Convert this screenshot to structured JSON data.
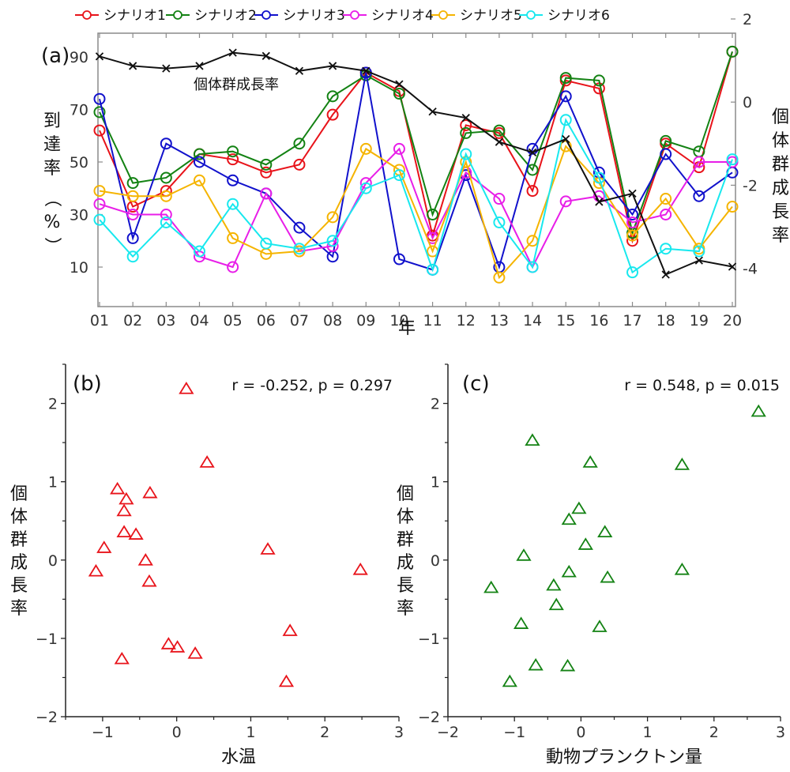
{
  "chart_data": [
    {
      "id": "a",
      "type": "line",
      "panel_label": "(a)",
      "xlabel": "年",
      "ylabel": "到達率（%）",
      "ylabel_right": "個体群成長率",
      "x": [
        "01",
        "02",
        "03",
        "04",
        "05",
        "06",
        "07",
        "08",
        "09",
        "10",
        "11",
        "12",
        "13",
        "14",
        "15",
        "16",
        "17",
        "18",
        "19",
        "20"
      ],
      "ylim": [
        0,
        98
      ],
      "yticks": [
        10,
        30,
        50,
        70,
        90
      ],
      "ylim_right": [
        -4.6,
        2.1
      ],
      "yticks_right": [
        -4,
        -2,
        0,
        2
      ],
      "legend_placement": "top",
      "series": [
        {
          "name": "シナリオ1",
          "color": "#e8131a",
          "marker": "circle",
          "axis": "left",
          "values": [
            62,
            33,
            39,
            53,
            51,
            46,
            49,
            68,
            84,
            77,
            22,
            64,
            61,
            39,
            81,
            78,
            20,
            57,
            48,
            92
          ]
        },
        {
          "name": "シナリオ2",
          "color": "#138213",
          "marker": "circle",
          "axis": "left",
          "values": [
            69,
            42,
            44,
            53,
            54,
            49,
            57,
            75,
            83,
            76,
            30,
            61,
            62,
            47,
            82,
            81,
            23,
            58,
            54,
            92
          ]
        },
        {
          "name": "シナリオ3",
          "color": "#1111cc",
          "marker": "circle",
          "axis": "left",
          "values": [
            74,
            21,
            57,
            50,
            43,
            38,
            25,
            14,
            84,
            13,
            9,
            45,
            10,
            55,
            75,
            46,
            30,
            53,
            37,
            46
          ]
        },
        {
          "name": "シナリオ4",
          "color": "#e81ee8",
          "marker": "circle",
          "axis": "left",
          "values": [
            34,
            30,
            30,
            14,
            10,
            38,
            16,
            18,
            42,
            55,
            21,
            46,
            36,
            10,
            35,
            37,
            27,
            30,
            50,
            50
          ]
        },
        {
          "name": "シナリオ5",
          "color": "#f5b400",
          "marker": "circle",
          "axis": "left",
          "values": [
            39,
            37,
            37,
            43,
            21,
            15,
            16,
            29,
            55,
            47,
            16,
            50,
            6,
            20,
            56,
            42,
            22,
            36,
            17,
            33
          ]
        },
        {
          "name": "シナリオ6",
          "color": "#18e8ee",
          "marker": "circle",
          "axis": "left",
          "values": [
            28,
            14,
            27,
            16,
            34,
            19,
            17,
            20,
            40,
            45,
            9,
            53,
            27,
            10,
            66,
            44,
            8,
            17,
            16,
            51
          ]
        }
      ],
      "series_right": [
        {
          "name": "個体群成長率",
          "color": "#111111",
          "marker": "x",
          "axis": "right",
          "values": [
            1.1,
            0.87,
            0.81,
            0.87,
            1.19,
            1.11,
            0.75,
            0.87,
            0.75,
            0.43,
            -0.23,
            -0.38,
            -0.96,
            -1.21,
            -0.89,
            -2.4,
            -2.2,
            -4.15,
            -3.81,
            -3.96
          ]
        }
      ],
      "annotation": "個体群成長率"
    },
    {
      "id": "b",
      "type": "scatter",
      "panel_label": "(b)",
      "stat": "r = -0.252, p = 0.297",
      "xlabel": "水温",
      "ylabel": "個体群成長率",
      "xlim": [
        -1.5,
        3
      ],
      "ylim": [
        -2,
        2.5
      ],
      "xticks": [
        -1,
        0,
        1,
        2,
        3
      ],
      "yticks": [
        -2,
        -1,
        0,
        1,
        2
      ],
      "xtick_labels": [
        "−1",
        "0",
        "1",
        "2",
        "3"
      ],
      "ytick_labels": [
        "−2",
        "−1",
        "0",
        "1",
        "2"
      ],
      "color": "#e8131a",
      "marker": "triangle",
      "points": [
        [
          0.13,
          2.19
        ],
        [
          0.41,
          1.25
        ],
        [
          -0.8,
          0.91
        ],
        [
          -0.36,
          0.86
        ],
        [
          -0.68,
          0.78
        ],
        [
          -0.71,
          0.63
        ],
        [
          -0.71,
          0.36
        ],
        [
          -0.55,
          0.33
        ],
        [
          -0.98,
          0.16
        ],
        [
          1.23,
          0.14
        ],
        [
          -0.42,
          0.0
        ],
        [
          -1.09,
          -0.14
        ],
        [
          2.48,
          -0.12
        ],
        [
          -0.37,
          -0.27
        ],
        [
          1.53,
          -0.9
        ],
        [
          -0.11,
          -1.07
        ],
        [
          0.01,
          -1.11
        ],
        [
          0.25,
          -1.19
        ],
        [
          -0.74,
          -1.26
        ],
        [
          1.48,
          -1.55
        ]
      ]
    },
    {
      "id": "c",
      "type": "scatter",
      "panel_label": "(c)",
      "stat": "r = 0.548, p = 0.015",
      "xlabel": "動物プランクトン量",
      "ylabel": "個体群成長率",
      "xlim": [
        -2,
        3
      ],
      "ylim": [
        -2,
        2.5
      ],
      "xticks": [
        -2,
        -1,
        0,
        1,
        2,
        3
      ],
      "yticks": [
        -2,
        -1,
        0,
        1,
        2
      ],
      "xtick_labels": [
        "−2",
        "−1",
        "0",
        "1",
        "2",
        "3"
      ],
      "ytick_labels": [
        "−2",
        "−1",
        "0",
        "1",
        "2"
      ],
      "color": "#138213",
      "marker": "triangle",
      "points": [
        [
          2.67,
          1.9
        ],
        [
          -0.73,
          1.53
        ],
        [
          0.14,
          1.25
        ],
        [
          1.52,
          1.22
        ],
        [
          -0.03,
          0.66
        ],
        [
          -0.18,
          0.52
        ],
        [
          0.36,
          0.36
        ],
        [
          0.07,
          0.2
        ],
        [
          -0.86,
          0.06
        ],
        [
          -0.18,
          -0.15
        ],
        [
          1.52,
          -0.12
        ],
        [
          0.4,
          -0.22
        ],
        [
          -1.35,
          -0.35
        ],
        [
          -0.41,
          -0.32
        ],
        [
          -0.37,
          -0.57
        ],
        [
          -0.9,
          -0.81
        ],
        [
          0.28,
          -0.85
        ],
        [
          -0.68,
          -1.34
        ],
        [
          -0.2,
          -1.35
        ],
        [
          -1.07,
          -1.55
        ]
      ]
    }
  ]
}
